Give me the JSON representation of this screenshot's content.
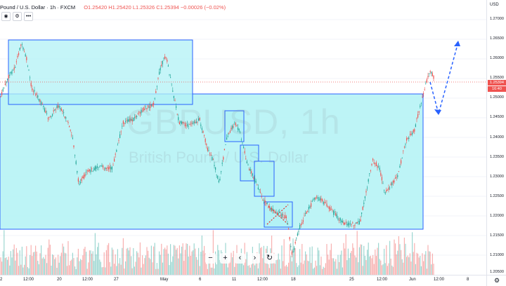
{
  "legend": {
    "title": "Pound / U.S. Dollar · 1h · FXCM",
    "open": "O1.25420",
    "high": "H1.25420",
    "low": "L1.25326",
    "close": "C1.25394",
    "change": "−0.00026 (−0.02%)"
  },
  "toolbar": {
    "eye_icon": "eye-icon",
    "settings_icon": "gear-icon",
    "more_label": "•••"
  },
  "watermark": {
    "symbol": "GBPUSD, 1h",
    "description": "British Pound / U.S. Dollar"
  },
  "price_axis": {
    "currency": "USD",
    "ticks": [
      "1.27000",
      "1.26500",
      "1.26000",
      "1.25500",
      "1.25000",
      "1.24500",
      "1.24000",
      "1.23500",
      "1.23000",
      "1.22500",
      "1.22000",
      "1.21500",
      "1.21000",
      "1.20500"
    ],
    "last_price": "1.25394",
    "countdown": "16:40",
    "last_price_color": "#ef5350",
    "countdown_color": "#ef5350"
  },
  "time_axis": {
    "ticks": [
      "2",
      "12:00",
      "20",
      "12:00",
      "27",
      "May",
      "6",
      "11",
      "12:00",
      "18",
      "25",
      "12:00",
      "Jun",
      "12:00",
      "8"
    ]
  },
  "navigation": {
    "zoom_out": "−",
    "zoom_in": "+",
    "scroll_left": "‹",
    "scroll_right": "›",
    "reset": "↻"
  },
  "colors": {
    "up": "#26a69a",
    "down": "#ef5350",
    "box_fill": "#b2f2f5",
    "box_border": "#2962ff",
    "projection": "#2962ff"
  }
}
